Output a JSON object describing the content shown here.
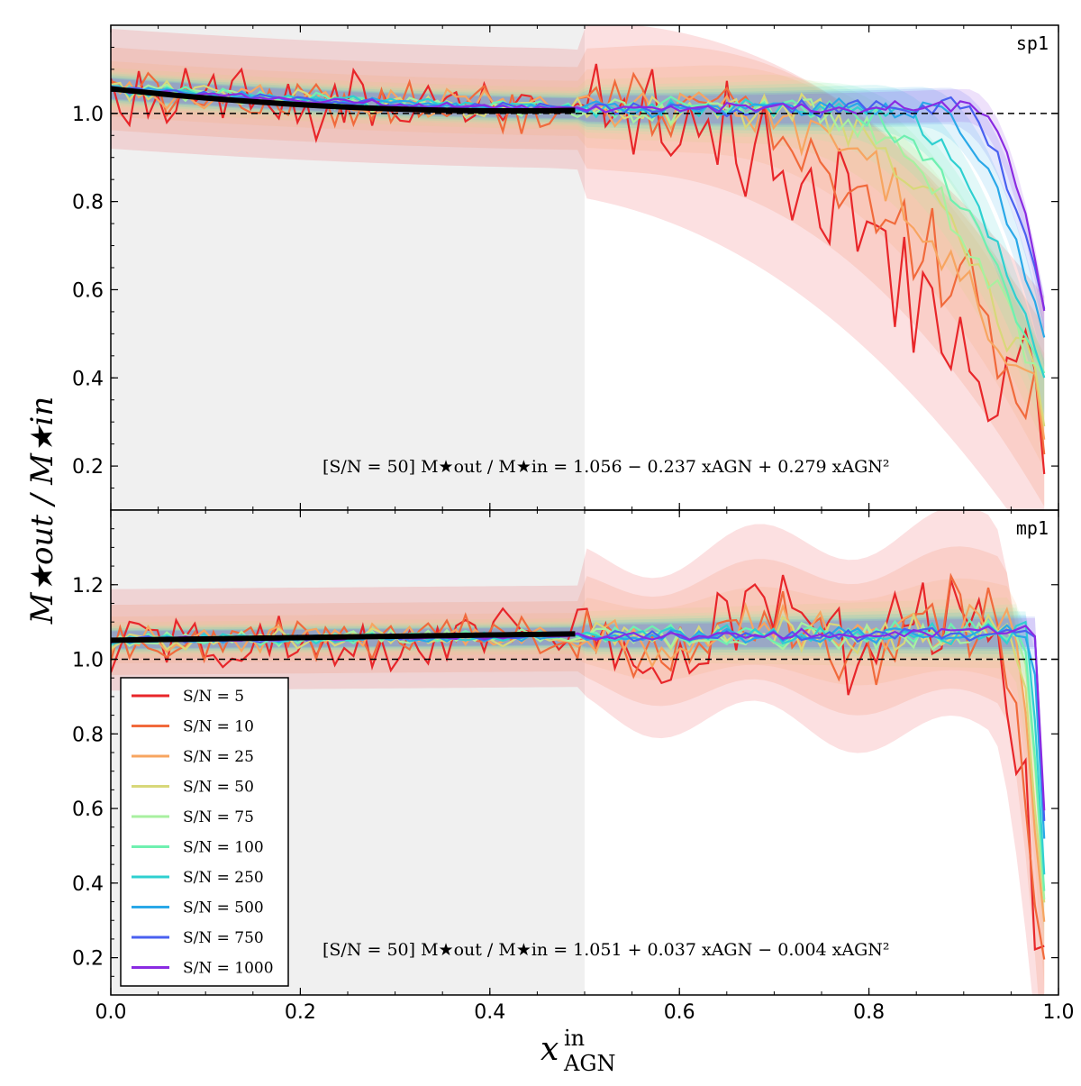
{
  "chart_data": [
    {
      "panel": "sp1",
      "type": "line",
      "tag": "sp1",
      "xlim": [
        0.0,
        1.0
      ],
      "ylim": [
        0.1,
        1.2
      ],
      "yticks": [
        "0.2",
        "0.4",
        "0.6",
        "0.8",
        "1.0"
      ],
      "ytick_values": [
        0.2,
        0.4,
        0.6,
        0.8,
        1.0
      ],
      "shaded_region_x": [
        0.0,
        0.5
      ],
      "reference_line_y": 1.0,
      "fit_annotation": "[S/N = 50]  M★out / M★in = 1.056 − 0.237 xAGN + 0.279 xAGN²",
      "fit": {
        "a": 1.056,
        "b": -0.237,
        "c": 0.279,
        "x_range": [
          0.0,
          0.49
        ]
      },
      "series": [
        {
          "name": "S/N = 5",
          "color": "#e8262a",
          "onset": 0.45,
          "drop": 0.7,
          "noise": 0.06,
          "end": 0.22
        },
        {
          "name": "S/N = 10",
          "color": "#f16a3c",
          "onset": 0.55,
          "drop": 0.68,
          "noise": 0.04,
          "end": 0.25
        },
        {
          "name": "S/N = 25",
          "color": "#f7a560",
          "onset": 0.62,
          "drop": 0.68,
          "noise": 0.025,
          "end": 0.3
        },
        {
          "name": "S/N = 50",
          "color": "#d8d87a",
          "onset": 0.68,
          "drop": 0.66,
          "noise": 0.018,
          "end": 0.32
        },
        {
          "name": "S/N = 75",
          "color": "#a8f0a0",
          "onset": 0.72,
          "drop": 0.64,
          "noise": 0.014,
          "end": 0.33
        },
        {
          "name": "S/N = 100",
          "color": "#6ff0b0",
          "onset": 0.75,
          "drop": 0.62,
          "noise": 0.012,
          "end": 0.35
        },
        {
          "name": "S/N = 250",
          "color": "#2fd0d0",
          "onset": 0.8,
          "drop": 0.6,
          "noise": 0.01,
          "end": 0.35
        },
        {
          "name": "S/N = 500",
          "color": "#2aa8e8",
          "onset": 0.85,
          "drop": 0.56,
          "noise": 0.008,
          "end": 0.45
        },
        {
          "name": "S/N = 750",
          "color": "#4a60f0",
          "onset": 0.88,
          "drop": 0.5,
          "noise": 0.007,
          "end": 0.52
        },
        {
          "name": "S/N = 1000",
          "color": "#8a2be2",
          "onset": 0.9,
          "drop": 0.48,
          "noise": 0.006,
          "end": 0.52
        }
      ]
    },
    {
      "panel": "mp1",
      "type": "line",
      "tag": "mp1",
      "xlim": [
        0.0,
        1.0
      ],
      "ylim": [
        0.1,
        1.4
      ],
      "yticks": [
        "0.2",
        "0.4",
        "0.6",
        "0.8",
        "1.0",
        "1.2"
      ],
      "ytick_values": [
        0.2,
        0.4,
        0.6,
        0.8,
        1.0,
        1.2
      ],
      "shaded_region_x": [
        0.0,
        0.5
      ],
      "reference_line_y": 1.0,
      "fit_annotation": "[S/N = 50]  M★out / M★in = 1.051 + 0.037 xAGN − 0.004 xAGN²",
      "fit": {
        "a": 1.051,
        "b": 0.037,
        "c": -0.004,
        "x_range": [
          0.0,
          0.49
        ]
      },
      "series": [
        {
          "name": "S/N = 5",
          "color": "#e8262a",
          "onset": 0.93,
          "drop": 0.9,
          "noise": 0.06,
          "end": 0.1
        },
        {
          "name": "S/N = 10",
          "color": "#f16a3c",
          "onset": 0.94,
          "drop": 0.85,
          "noise": 0.04,
          "end": 0.12
        },
        {
          "name": "S/N = 25",
          "color": "#f7a560",
          "onset": 0.95,
          "drop": 0.8,
          "noise": 0.025,
          "end": 0.25
        },
        {
          "name": "S/N = 50",
          "color": "#d8d87a",
          "onset": 0.95,
          "drop": 0.75,
          "noise": 0.018,
          "end": 0.3
        },
        {
          "name": "S/N = 75",
          "color": "#a8f0a0",
          "onset": 0.96,
          "drop": 0.7,
          "noise": 0.014,
          "end": 0.32
        },
        {
          "name": "S/N = 100",
          "color": "#6ff0b0",
          "onset": 0.96,
          "drop": 0.65,
          "noise": 0.012,
          "end": 0.35
        },
        {
          "name": "S/N = 250",
          "color": "#2fd0d0",
          "onset": 0.965,
          "drop": 0.6,
          "noise": 0.01,
          "end": 0.4
        },
        {
          "name": "S/N = 500",
          "color": "#2aa8e8",
          "onset": 0.97,
          "drop": 0.55,
          "noise": 0.008,
          "end": 0.5
        },
        {
          "name": "S/N = 750",
          "color": "#4a60f0",
          "onset": 0.975,
          "drop": 0.5,
          "noise": 0.007,
          "end": 0.55
        },
        {
          "name": "S/N = 1000",
          "color": "#8a2be2",
          "onset": 0.98,
          "drop": 0.45,
          "noise": 0.006,
          "end": 0.58
        }
      ]
    }
  ],
  "xticks": [
    "0.0",
    "0.2",
    "0.4",
    "0.6",
    "0.8",
    "1.0"
  ],
  "xtick_values": [
    0.0,
    0.2,
    0.4,
    0.6,
    0.8,
    1.0
  ],
  "xlabel": {
    "main": "x",
    "sup": "in",
    "sub": "AGN"
  },
  "ylabel": {
    "text": "M★out / M★in"
  },
  "legend": {
    "location": "lower-left",
    "entries": [
      "S/N = 5",
      "S/N = 10",
      "S/N = 25",
      "S/N = 50",
      "S/N = 75",
      "S/N = 100",
      "S/N = 250",
      "S/N = 500",
      "S/N = 750",
      "S/N = 1000"
    ],
    "colors": [
      "#e8262a",
      "#f16a3c",
      "#f7a560",
      "#d8d87a",
      "#a8f0a0",
      "#6ff0b0",
      "#2fd0d0",
      "#2aa8e8",
      "#4a60f0",
      "#8a2be2"
    ]
  }
}
